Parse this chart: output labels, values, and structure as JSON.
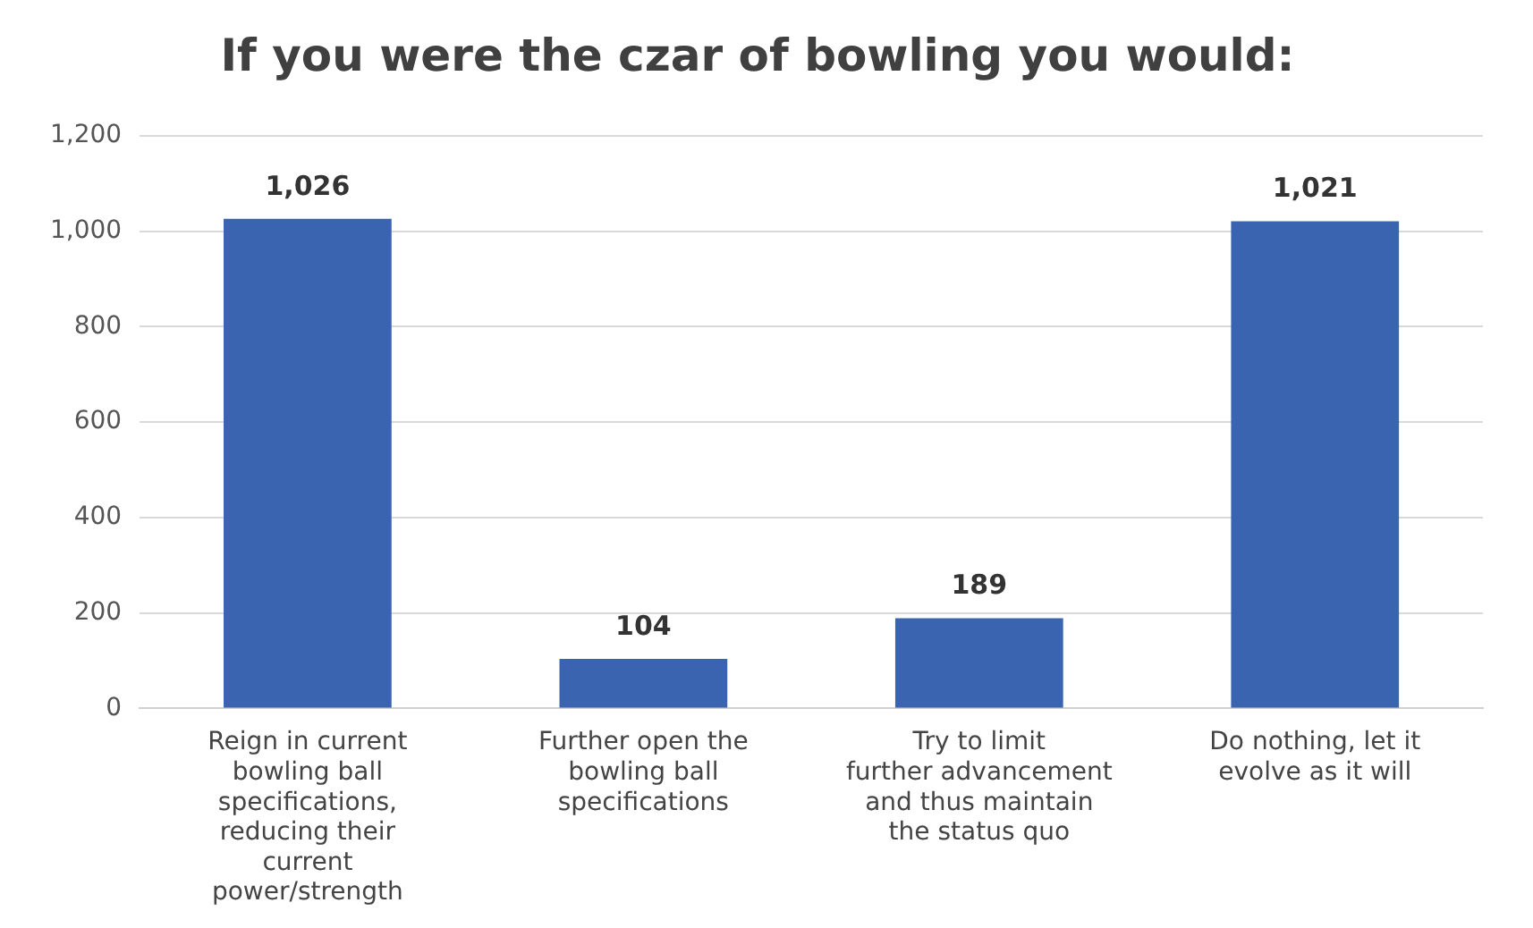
{
  "chart_data": {
    "type": "bar",
    "title": "If you were the czar of bowling you would:",
    "categories": [
      "Reign in current bowling ball specifications, reducing their current power/strength",
      "Further open the bowling ball specifications",
      "Try to limit further advancement and thus maintain the status quo",
      "Do nothing, let it evolve as it will"
    ],
    "values": [
      1026,
      104,
      189,
      1021
    ],
    "color": "#3b64b0",
    "value_labels": [
      "1,026",
      "104",
      "189",
      "1,021"
    ],
    "ylim": [
      0,
      1200
    ],
    "yticks": [
      0,
      200,
      400,
      600,
      800,
      {
        "value": 1000,
        "label": "1,000"
      },
      {
        "value": 1200,
        "label": "1,200"
      }
    ],
    "grid": "y"
  }
}
